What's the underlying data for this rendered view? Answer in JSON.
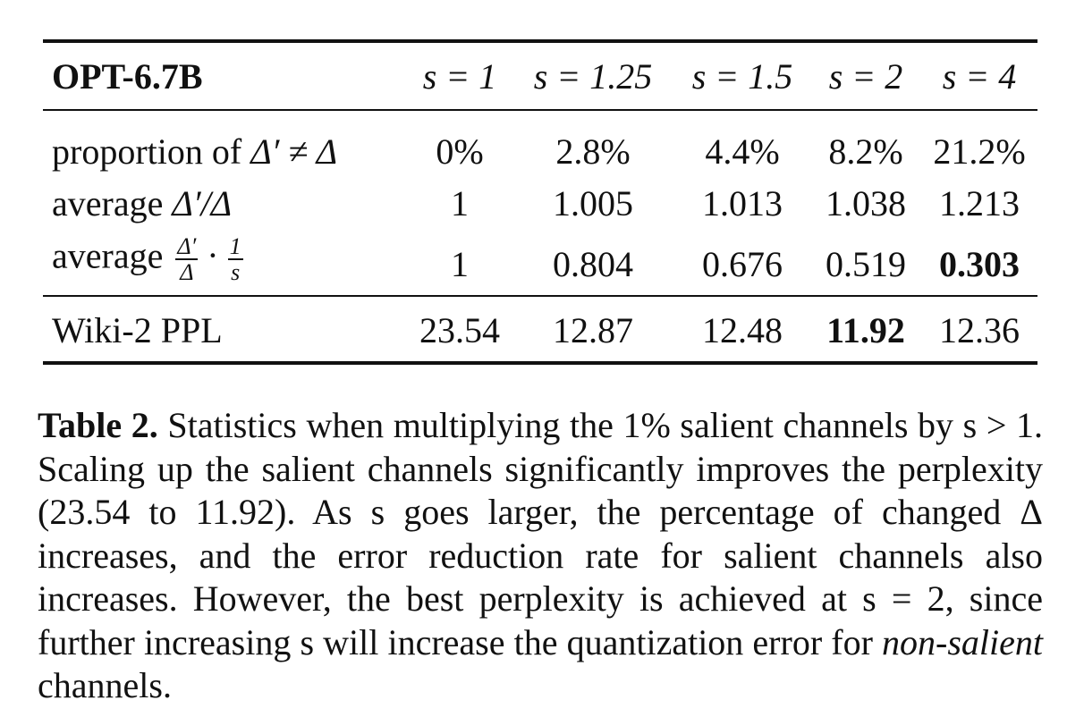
{
  "table": {
    "model": "OPT-6.7B",
    "columns": [
      "s = 1",
      "s = 1.25",
      "s = 1.5",
      "s = 2",
      "s = 4"
    ],
    "rows": [
      {
        "label_prefix": "proportion of ",
        "label_math": "Δ′ ≠ Δ",
        "values": [
          "0%",
          "2.8%",
          "4.4%",
          "8.2%",
          "21.2%"
        ]
      },
      {
        "label_prefix": "average ",
        "label_math": "Δ′/Δ",
        "values": [
          "1",
          "1.005",
          "1.013",
          "1.038",
          "1.213"
        ]
      },
      {
        "label_prefix": "average ",
        "label_frac1_num": "Δ′",
        "label_frac1_den": "Δ",
        "label_dot": "·",
        "label_frac2_num": "1",
        "label_frac2_den": "s",
        "values": [
          "1",
          "0.804",
          "0.676",
          "0.519",
          "0.303"
        ]
      },
      {
        "label": "Wiki-2 PPL",
        "values": [
          "23.54",
          "12.87",
          "12.48",
          "11.92",
          "12.36"
        ]
      }
    ]
  },
  "caption": {
    "label": "Table 2.",
    "text_part1": " Statistics when multiplying the 1% salient channels by s > 1. Scaling up the salient channels significantly improves the perplexity (23.54 to 11.92). As s goes larger, the percentage of changed Δ increases, and the error reduction rate for salient channels also increases. However, the best perplexity is achieved at s = 2, since further increasing s will increase the quantization error for ",
    "emph": "non-salient",
    "text_part2": " channels."
  }
}
